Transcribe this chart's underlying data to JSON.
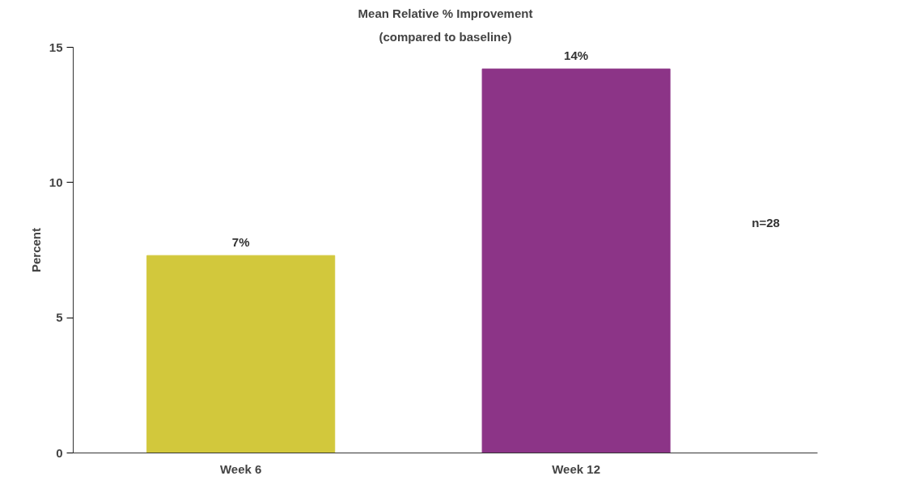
{
  "chart_data": {
    "type": "bar",
    "title": "Mean Relative % Improvement",
    "subtitle": "(compared to baseline)",
    "ylabel": "Percent",
    "categories": [
      "Week 6",
      "Week 12"
    ],
    "values": [
      7.3,
      14.2
    ],
    "colors": [
      "#d2c83c",
      "#8c3487"
    ],
    "value_labels": [
      "7%",
      "14%"
    ],
    "ylim": [
      0,
      15
    ],
    "yticks": [
      0,
      5,
      10,
      15
    ],
    "grid": false,
    "annotations": [
      "n=28"
    ]
  }
}
